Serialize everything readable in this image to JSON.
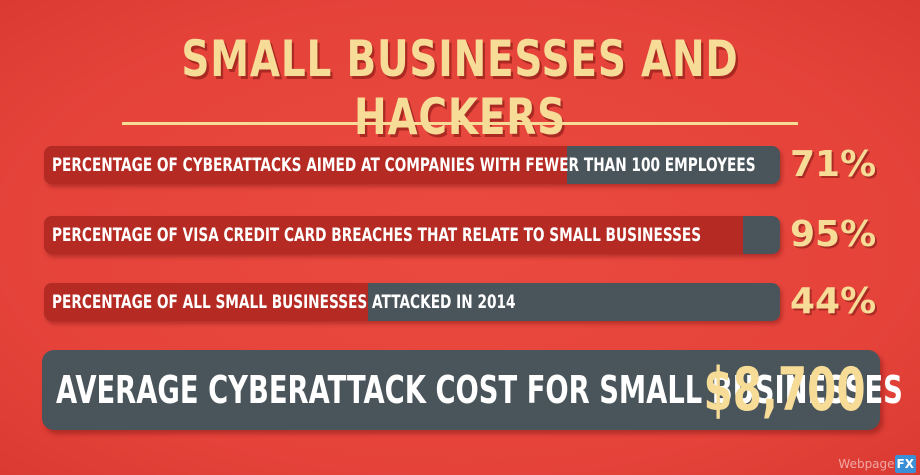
{
  "title": "SMALL BUSINESSES AND HACKERS",
  "chart_data": {
    "type": "bar",
    "categories": [
      "PERCENTAGE OF CYBERATTACKS AIMED AT COMPANIES WITH FEWER THAN 100 EMPLOYEES",
      "PERCENTAGE OF VISA CREDIT CARD BREACHES THAT RELATE TO SMALL BUSINESSES",
      "PERCENTAGE OF ALL SMALL BUSINESSES ATTACKED IN 2014"
    ],
    "values": [
      71,
      95,
      44
    ],
    "value_labels": [
      "71%",
      "95%",
      "44%"
    ],
    "ylim": [
      0,
      100
    ],
    "colors": {
      "fill": "#b52a22",
      "track": "#4a555b"
    }
  },
  "highlight": {
    "label": "AVERAGE CYBERATTACK COST FOR SMALL BUSINESSES",
    "value": "$8,700"
  },
  "brand": {
    "prefix": "Webpage",
    "suffix": "FX"
  },
  "colors": {
    "background": "#e8453b",
    "accent": "#f7dc98",
    "bar_dark": "#4a555b",
    "bar_red": "#b52a22"
  }
}
